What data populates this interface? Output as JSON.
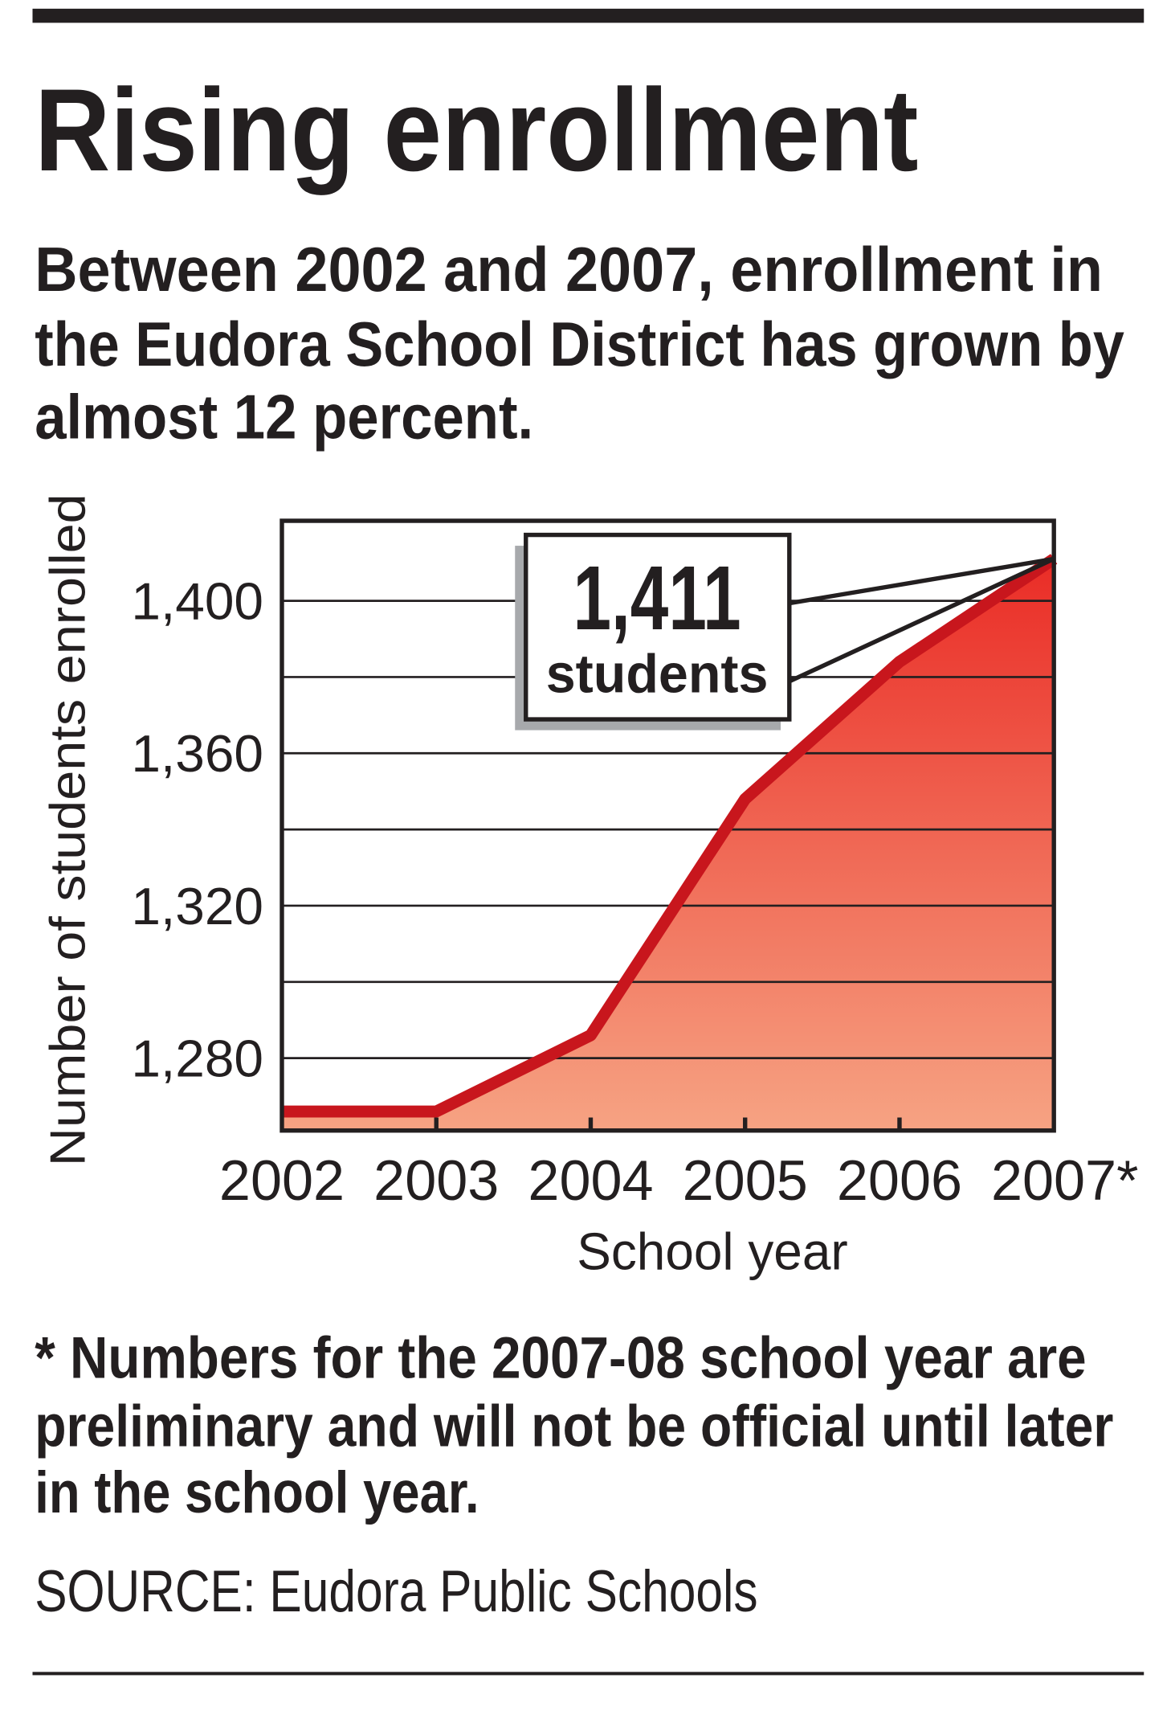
{
  "chart_data": {
    "type": "area",
    "title": "Rising enrollment",
    "subtitle_lines": [
      "Between 2002 and 2007, enrollment in",
      "the Eudora School District has grown by",
      "almost 12 percent."
    ],
    "y_label": "Number of students enrolled",
    "x_label": "School year",
    "categories": [
      "2002",
      "2003",
      "2004",
      "2005",
      "2006",
      "2007*"
    ],
    "values": [
      1266,
      1266,
      1286,
      1348,
      1384,
      1411
    ],
    "value_labels": [
      null,
      null,
      null,
      null,
      null,
      "1,411"
    ],
    "annotation_text": "students",
    "color": "#c8161d",
    "ylim": [
      1261,
      1421
    ],
    "yticks": [
      {
        "value": 1280,
        "label": "1,280"
      },
      {
        "value": 1320,
        "label": "1,320"
      },
      {
        "value": 1360,
        "label": "1,360"
      },
      {
        "value": 1400,
        "label": "1,400"
      }
    ],
    "minor_yticks": [
      1300,
      1340,
      1380
    ],
    "grid": true,
    "footnote_lines": [
      "* Numbers for the 2007-08 school year are",
      "preliminary and will not be official until later",
      "in the school year."
    ],
    "source": "SOURCE: Eudora Public Schools"
  }
}
